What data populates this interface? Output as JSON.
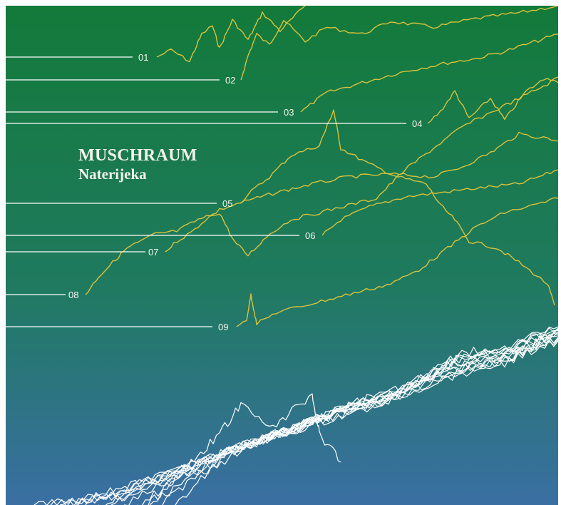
{
  "cover": {
    "title": "MUSCHRAUM",
    "subtitle": "Naterijeka",
    "colors": {
      "top": "#137a3a",
      "middle": "#1f7a5e",
      "bottom": "#3a6fa3",
      "trace_yellow": "#d9c23c",
      "leader_white": "#ffffff"
    }
  },
  "tracks": [
    {
      "label": "01"
    },
    {
      "label": "02"
    },
    {
      "label": "03"
    },
    {
      "label": "04"
    },
    {
      "label": "05"
    },
    {
      "label": "06"
    },
    {
      "label": "07"
    },
    {
      "label": "08"
    },
    {
      "label": "09"
    }
  ]
}
